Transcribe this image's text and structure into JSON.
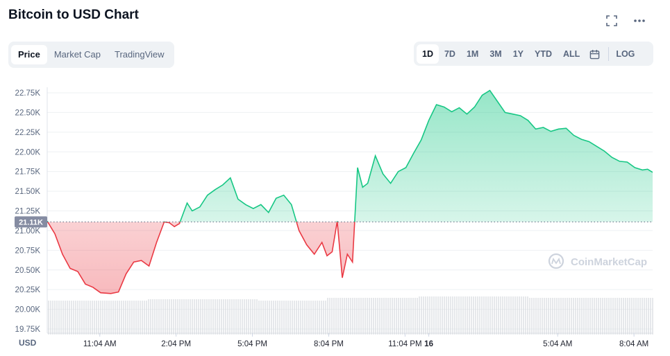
{
  "header": {
    "title": "Bitcoin to USD Chart"
  },
  "icons": {
    "fullscreen": "fullscreen-icon",
    "more": "more-icon",
    "calendar": "calendar-icon"
  },
  "view_tabs": [
    {
      "label": "Price",
      "active": true
    },
    {
      "label": "Market Cap",
      "active": false
    },
    {
      "label": "TradingView",
      "active": false
    }
  ],
  "range_tabs": [
    {
      "label": "1D",
      "active": true
    },
    {
      "label": "7D",
      "active": false
    },
    {
      "label": "1M",
      "active": false
    },
    {
      "label": "3M",
      "active": false
    },
    {
      "label": "1Y",
      "active": false
    },
    {
      "label": "YTD",
      "active": false
    },
    {
      "label": "ALL",
      "active": false
    }
  ],
  "log_label": "LOG",
  "watermark": "CoinMarketCap",
  "colors": {
    "up": "#16c784",
    "down": "#ea3943",
    "grid": "#eef0f3",
    "volume": "#d5d8de"
  },
  "chart_data": {
    "type": "line",
    "title": "Bitcoin to USD Chart",
    "ylabel": "USD",
    "ylim": [
      19750,
      22750
    ],
    "y_ticks": [
      "22.75K",
      "22.50K",
      "22.25K",
      "22.00K",
      "21.75K",
      "21.50K",
      "21.25K",
      "21.00K",
      "20.75K",
      "20.50K",
      "20.25K",
      "20.00K",
      "19.75K"
    ],
    "x_ticks": [
      "11:04 AM",
      "2:04 PM",
      "5:04 PM",
      "8:04 PM",
      "11:04 PM",
      "16",
      "5:04 AM",
      "8:04 AM"
    ],
    "reference_label": "21.11K",
    "reference_value": 21110,
    "x_range_hours": [
      9.0,
      32.8
    ],
    "grid": true,
    "series": [
      {
        "x": [
          9.0,
          9.3,
          9.6,
          9.9,
          10.2,
          10.5,
          10.8,
          11.1,
          11.5,
          11.8,
          12.1,
          12.4,
          12.7,
          13.0,
          13.3,
          13.6,
          13.8,
          14.0,
          14.2,
          14.5,
          14.7,
          15.0,
          15.3,
          15.6,
          15.9,
          16.2,
          16.5,
          16.8,
          17.1,
          17.4,
          17.7,
          18.0,
          18.3,
          18.6,
          18.9,
          19.2,
          19.5,
          19.8,
          20.0,
          20.2,
          20.4,
          20.6,
          20.8,
          21.0,
          21.2,
          21.4,
          21.6,
          21.9,
          22.2,
          22.5,
          22.8,
          23.1,
          23.4,
          23.7,
          24.0,
          24.3,
          24.6,
          24.9,
          25.2,
          25.5,
          25.8,
          26.1,
          26.4,
          26.7,
          27.0,
          27.3,
          27.6,
          27.9,
          28.2,
          28.5,
          28.8,
          29.1,
          29.4,
          29.7,
          30.0,
          30.3,
          30.6,
          30.9,
          31.2,
          31.5,
          31.8,
          32.1,
          32.4,
          32.6,
          32.8
        ],
        "values": [
          21120,
          20960,
          20700,
          20520,
          20480,
          20320,
          20280,
          20210,
          20200,
          20220,
          20450,
          20600,
          20620,
          20550,
          20850,
          21110,
          21100,
          21050,
          21090,
          21350,
          21250,
          21300,
          21450,
          21520,
          21580,
          21670,
          21400,
          21330,
          21280,
          21330,
          21230,
          21410,
          21450,
          21330,
          21000,
          20820,
          20700,
          20850,
          20680,
          20730,
          21120,
          20400,
          20700,
          20600,
          21800,
          21550,
          21600,
          21950,
          21720,
          21600,
          21750,
          21800,
          21980,
          22150,
          22400,
          22600,
          22570,
          22510,
          22560,
          22480,
          22570,
          22720,
          22780,
          22640,
          22500,
          22480,
          22460,
          22400,
          22290,
          22310,
          22260,
          22290,
          22300,
          22210,
          22160,
          22130,
          22070,
          22010,
          21930,
          21880,
          21870,
          21800,
          21770,
          21780,
          21740
        ]
      }
    ],
    "volume": {
      "shown": true
    }
  }
}
